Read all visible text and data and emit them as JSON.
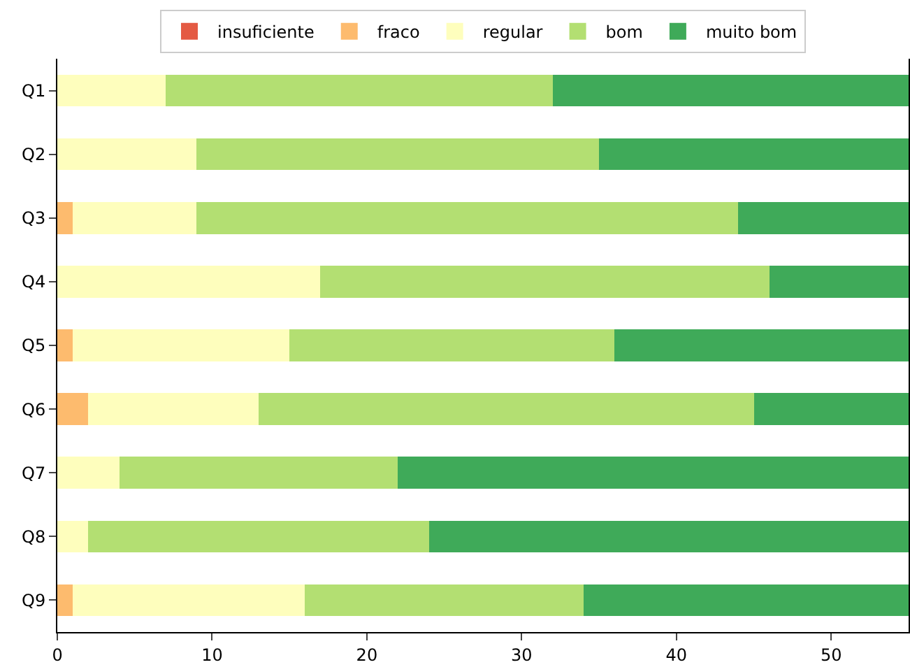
{
  "chart_data": {
    "type": "bar",
    "orientation": "horizontal",
    "stacked": true,
    "categories": [
      "Q1",
      "Q2",
      "Q3",
      "Q4",
      "Q5",
      "Q6",
      "Q7",
      "Q8",
      "Q9"
    ],
    "series": [
      {
        "name": "insuficiente",
        "color": "#e45a43",
        "values": [
          0,
          0,
          0,
          0,
          0,
          0,
          0,
          0,
          0
        ]
      },
      {
        "name": "fraco",
        "color": "#fdbb6e",
        "values": [
          0,
          0,
          1,
          0,
          1,
          2,
          0,
          0,
          1
        ]
      },
      {
        "name": "regular",
        "color": "#fefebd",
        "values": [
          7,
          9,
          8,
          17,
          14,
          11,
          4,
          2,
          15
        ]
      },
      {
        "name": "bom",
        "color": "#b3df72",
        "values": [
          25,
          26,
          35,
          29,
          21,
          32,
          18,
          22,
          18
        ]
      },
      {
        "name": "muito bom",
        "color": "#3faa59",
        "values": [
          23,
          20,
          11,
          9,
          19,
          10,
          33,
          31,
          21
        ]
      }
    ],
    "xlim": [
      0,
      55
    ],
    "xticks": [
      0,
      10,
      20,
      30,
      40,
      50
    ],
    "legend": "top"
  }
}
